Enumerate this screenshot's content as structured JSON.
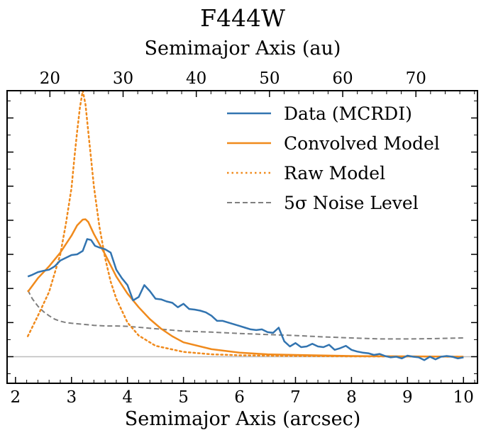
{
  "chart_data": {
    "type": "line",
    "title": "F444W",
    "xlabel": "Semimajor Axis (arcsec)",
    "x2label": "Semimajor Axis (au)",
    "ylabel": "",
    "xlim": [
      1.85,
      10.25
    ],
    "ylim": [
      -0.78,
      7.8
    ],
    "x_ticks": [
      "2",
      "3",
      "4",
      "5",
      "6",
      "7",
      "8",
      "9",
      "10"
    ],
    "x2_ticks": [
      "20",
      "30",
      "40",
      "50",
      "60",
      "70"
    ],
    "au_per_arcsec": 7.65,
    "zero_line": 0,
    "legend_position": "top-right",
    "series": [
      {
        "name": "Data (MCRDI)",
        "color": "#3274b0",
        "style": "solid",
        "x": [
          2.22,
          2.3,
          2.4,
          2.5,
          2.6,
          2.7,
          2.8,
          2.9,
          3.0,
          3.1,
          3.2,
          3.28,
          3.35,
          3.42,
          3.5,
          3.6,
          3.7,
          3.8,
          3.9,
          4.0,
          4.1,
          4.2,
          4.3,
          4.4,
          4.5,
          4.6,
          4.7,
          4.8,
          4.9,
          5.0,
          5.1,
          5.2,
          5.3,
          5.4,
          5.5,
          5.6,
          5.7,
          5.8,
          5.9,
          6.0,
          6.1,
          6.2,
          6.3,
          6.4,
          6.5,
          6.6,
          6.7,
          6.8,
          6.9,
          7.0,
          7.1,
          7.2,
          7.3,
          7.4,
          7.5,
          7.6,
          7.7,
          7.8,
          7.9,
          8.0,
          8.1,
          8.2,
          8.3,
          8.4,
          8.5,
          8.6,
          8.7,
          8.8,
          8.9,
          9.0,
          9.1,
          9.2,
          9.3,
          9.4,
          9.5,
          9.6,
          9.7,
          9.8,
          9.9,
          10.0
        ],
        "values": [
          2.35,
          2.4,
          2.48,
          2.52,
          2.55,
          2.65,
          2.82,
          2.9,
          2.98,
          3.0,
          3.1,
          3.45,
          3.42,
          3.25,
          3.2,
          3.15,
          3.05,
          2.55,
          2.3,
          2.1,
          1.65,
          1.75,
          2.1,
          1.92,
          1.7,
          1.68,
          1.62,
          1.58,
          1.45,
          1.55,
          1.4,
          1.38,
          1.35,
          1.3,
          1.2,
          1.05,
          1.05,
          1.0,
          0.95,
          0.9,
          0.85,
          0.8,
          0.78,
          0.8,
          0.72,
          0.7,
          0.85,
          0.45,
          0.3,
          0.4,
          0.28,
          0.3,
          0.38,
          0.3,
          0.28,
          0.35,
          0.2,
          0.25,
          0.32,
          0.2,
          0.15,
          0.12,
          0.1,
          0.05,
          0.08,
          0.02,
          -0.02,
          0.0,
          -0.05,
          0.03,
          0.0,
          -0.02,
          -0.1,
          0.0,
          -0.08,
          0.0,
          0.02,
          0.0,
          -0.05,
          -0.02
        ]
      },
      {
        "name": "Convolved Model",
        "color": "#f08a1c",
        "style": "solid",
        "x": [
          2.22,
          2.4,
          2.6,
          2.8,
          3.0,
          3.1,
          3.2,
          3.25,
          3.3,
          3.4,
          3.5,
          3.6,
          3.8,
          4.0,
          4.2,
          4.4,
          4.6,
          4.8,
          5.0,
          5.5,
          6.0,
          6.5,
          7.0,
          8.0,
          9.0,
          10.0
        ],
        "values": [
          1.9,
          2.3,
          2.65,
          3.05,
          3.55,
          3.85,
          4.02,
          4.03,
          3.95,
          3.6,
          3.3,
          3.0,
          2.35,
          1.85,
          1.45,
          1.1,
          0.82,
          0.6,
          0.42,
          0.22,
          0.12,
          0.07,
          0.05,
          0.02,
          0.01,
          0.0
        ]
      },
      {
        "name": "Raw Model",
        "color": "#f08a1c",
        "style": "dotted",
        "x": [
          2.22,
          2.4,
          2.6,
          2.8,
          2.9,
          3.0,
          3.05,
          3.1,
          3.15,
          3.2,
          3.25,
          3.3,
          3.35,
          3.4,
          3.5,
          3.6,
          3.7,
          3.8,
          4.0,
          4.2,
          4.5,
          5.0,
          5.5,
          6.0,
          7.0,
          8.0,
          10.0
        ],
        "values": [
          0.6,
          1.2,
          1.9,
          3.0,
          3.9,
          4.95,
          5.8,
          6.6,
          7.3,
          7.8,
          7.4,
          6.6,
          5.8,
          5.0,
          3.8,
          2.9,
          2.2,
          1.7,
          1.0,
          0.62,
          0.32,
          0.14,
          0.07,
          0.04,
          0.02,
          0.01,
          0.0
        ]
      },
      {
        "name": "5σ Noise Level",
        "color": "#7f7f7f",
        "style": "dashed",
        "x": [
          2.22,
          2.3,
          2.4,
          2.5,
          2.6,
          2.7,
          2.8,
          2.9,
          3.0,
          3.2,
          3.4,
          3.6,
          3.8,
          4.0,
          4.5,
          5.0,
          5.5,
          6.0,
          6.5,
          7.0,
          7.5,
          8.0,
          8.5,
          9.0,
          9.5,
          10.0
        ],
        "values": [
          1.95,
          1.7,
          1.48,
          1.32,
          1.2,
          1.1,
          1.04,
          1.0,
          0.98,
          0.95,
          0.92,
          0.9,
          0.9,
          0.89,
          0.82,
          0.75,
          0.72,
          0.68,
          0.65,
          0.62,
          0.58,
          0.55,
          0.52,
          0.52,
          0.53,
          0.55
        ]
      }
    ]
  }
}
